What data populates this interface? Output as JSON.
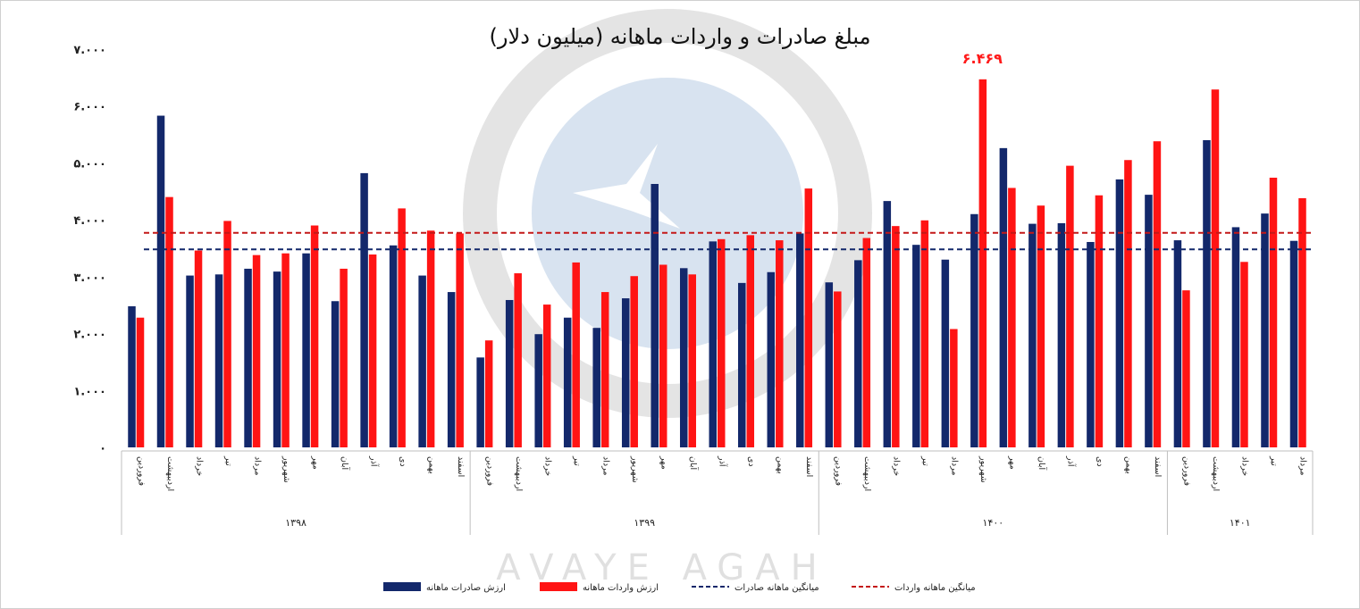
{
  "chart_data": {
    "type": "bar",
    "title": "مبلغ صادرات و واردات ماهانه (میلیون دلار)",
    "ylim": [
      0,
      7000
    ],
    "yticks": [
      "۰",
      "۱.۰۰۰",
      "۲.۰۰۰",
      "۳.۰۰۰",
      "۴.۰۰۰",
      "۵.۰۰۰",
      "۶.۰۰۰",
      "۷.۰۰۰"
    ],
    "years": [
      {
        "label": "۱۳۹۸",
        "months": 12
      },
      {
        "label": "۱۳۹۹",
        "months": 12
      },
      {
        "label": "۱۴۰۰",
        "months": 12
      },
      {
        "label": "۱۴۰۱",
        "months": 5
      }
    ],
    "categories": [
      "فروردین",
      "اردیبهشت",
      "خرداد",
      "تیر",
      "مرداد",
      "شهریور",
      "مهر",
      "آبان",
      "آذر",
      "دی",
      "بهمن",
      "اسفند",
      "فروردین",
      "اردیبهشت",
      "خرداد",
      "تیر",
      "مرداد",
      "شهریور",
      "مهر",
      "آبان",
      "آذر",
      "دی",
      "بهمن",
      "اسفند",
      "فروردین",
      "اردیبهشت",
      "خرداد",
      "تیر",
      "مرداد",
      "شهریور",
      "مهر",
      "آبان",
      "آذر",
      "دی",
      "بهمن",
      "اسفند",
      "فروردین",
      "اردیبهشت",
      "خرداد",
      "تیر",
      "مرداد"
    ],
    "series": [
      {
        "name": "ارزش صادرات ماهانه",
        "color": "#13286b",
        "values": [
          2480,
          5830,
          3020,
          3040,
          3140,
          3090,
          3410,
          2570,
          4820,
          3550,
          3020,
          2730,
          1580,
          2590,
          1990,
          2280,
          2100,
          2620,
          4630,
          3150,
          3620,
          2890,
          3080,
          3760,
          2900,
          3290,
          4330,
          3560,
          3300,
          4100,
          5260,
          3930,
          3940,
          3610,
          4710,
          4440,
          3640,
          5400,
          3870,
          4110,
          3630
        ]
      },
      {
        "name": "ارزش واردات ماهانه",
        "color": "#ff1414",
        "values": [
          2280,
          4400,
          3460,
          3980,
          3380,
          3410,
          3900,
          3140,
          3390,
          4200,
          3810,
          3760,
          1880,
          3060,
          2510,
          3250,
          2730,
          3010,
          3210,
          3040,
          3660,
          3730,
          3640,
          4550,
          2740,
          3680,
          3890,
          3990,
          2080,
          6469,
          4560,
          4250,
          4950,
          4430,
          5050,
          5380,
          2760,
          6290,
          3260,
          4740,
          4380
        ]
      }
    ],
    "averages": [
      {
        "name": "میانگین ماهانه صادرات",
        "value": 3480,
        "color": "#13286b"
      },
      {
        "name": "میانگین ماهانه واردات",
        "value": 3770,
        "color": "#c41818"
      }
    ],
    "annotation": {
      "text": "۶.۴۶۹",
      "index": 29
    },
    "watermark": "AVAYE AGAH",
    "legend_position": "bottom"
  }
}
